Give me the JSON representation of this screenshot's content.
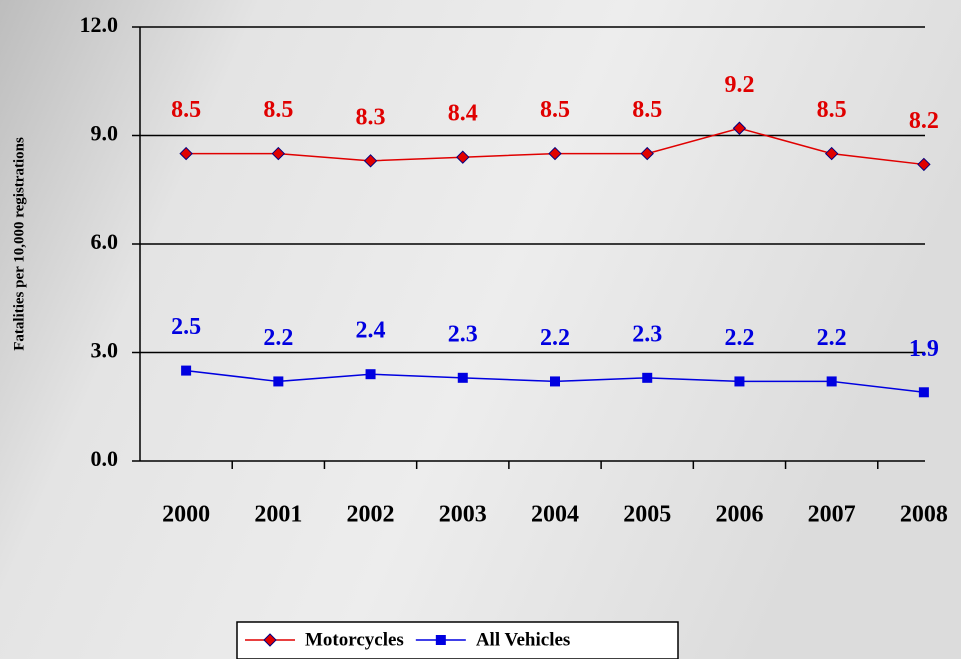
{
  "chart_data": {
    "type": "line",
    "y_label": "Fatalities per 10,000 registrations",
    "categories": [
      "2000",
      "2001",
      "2002",
      "2003",
      "2004",
      "2005",
      "2006",
      "2007",
      "2008"
    ],
    "series": [
      {
        "name": "Motorcycles",
        "color": "#e00000",
        "marker": "diamond",
        "values": [
          8.5,
          8.5,
          8.3,
          8.4,
          8.5,
          8.5,
          9.2,
          8.5,
          8.2
        ]
      },
      {
        "name": "All Vehicles",
        "color": "#0000e0",
        "marker": "square",
        "values": [
          2.5,
          2.2,
          2.4,
          2.3,
          2.2,
          2.3,
          2.2,
          2.2,
          1.9
        ]
      }
    ],
    "ylim": [
      0,
      12
    ],
    "yticks": [
      {
        "value": 0,
        "label": "0.0"
      },
      {
        "value": 3,
        "label": "3.0"
      },
      {
        "value": 6,
        "label": "6.0"
      },
      {
        "value": 9,
        "label": "9.0"
      },
      {
        "value": 12,
        "label": "12.0"
      }
    ],
    "grid": true,
    "legend": "bottom"
  }
}
